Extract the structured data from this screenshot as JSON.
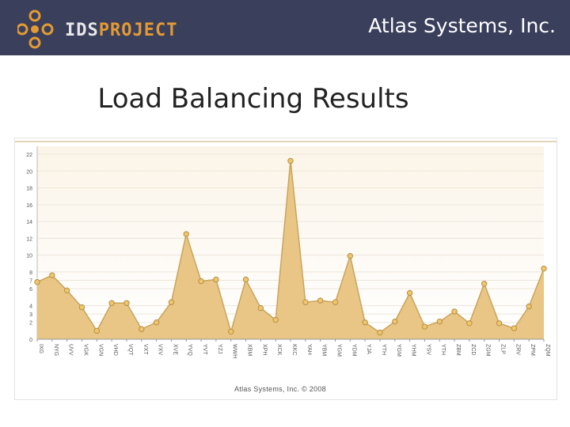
{
  "header": {
    "logo_ids": "IDS",
    "logo_project": "PROJECT",
    "company": "Atlas Systems, Inc.",
    "background": "#3a3f5c",
    "accent": "#e39a32"
  },
  "slide_title": "Load Balancing Results",
  "chart_data": {
    "type": "area",
    "x": [
      "IXG",
      "NYG",
      "UVV",
      "VGK",
      "VGN",
      "VHD",
      "VQT",
      "VXT",
      "VXV",
      "XVE",
      "YVQ",
      "YVT",
      "YZJ",
      "WWH",
      "XBM",
      "XPH",
      "XCK",
      "KKC",
      "YAH",
      "YBM",
      "YGM",
      "YDM",
      "YJA",
      "YTH",
      "YGM",
      "YHM",
      "YSV",
      "YTH",
      "ZBM",
      "ZCD",
      "ZGM",
      "ZLP",
      "ZRV",
      "ZPM",
      "ZQM"
    ],
    "values": [
      6.8,
      7.6,
      5.8,
      3.8,
      1.0,
      4.3,
      4.3,
      1.2,
      2.0,
      4.4,
      12.5,
      6.9,
      7.1,
      0.9,
      7.1,
      3.7,
      2.3,
      21.2,
      4.4,
      4.6,
      4.4,
      9.9,
      2.0,
      0.8,
      2.1,
      5.5,
      1.5,
      2.1,
      3.3,
      1.9,
      6.6,
      1.9,
      1.3,
      3.9,
      8.4
    ],
    "yticks": [
      "0",
      "2",
      "3",
      "4",
      "6",
      "7",
      "8",
      "10",
      "12",
      "14",
      "16",
      "18",
      "20",
      "22"
    ],
    "ylim": [
      0,
      22
    ],
    "grid": "horizontal",
    "fill_color": "#e8c37f",
    "line_color": "#c9a45a",
    "marker_color": "#f0c66c"
  },
  "copyright": "Atlas Systems, Inc. © 2008"
}
